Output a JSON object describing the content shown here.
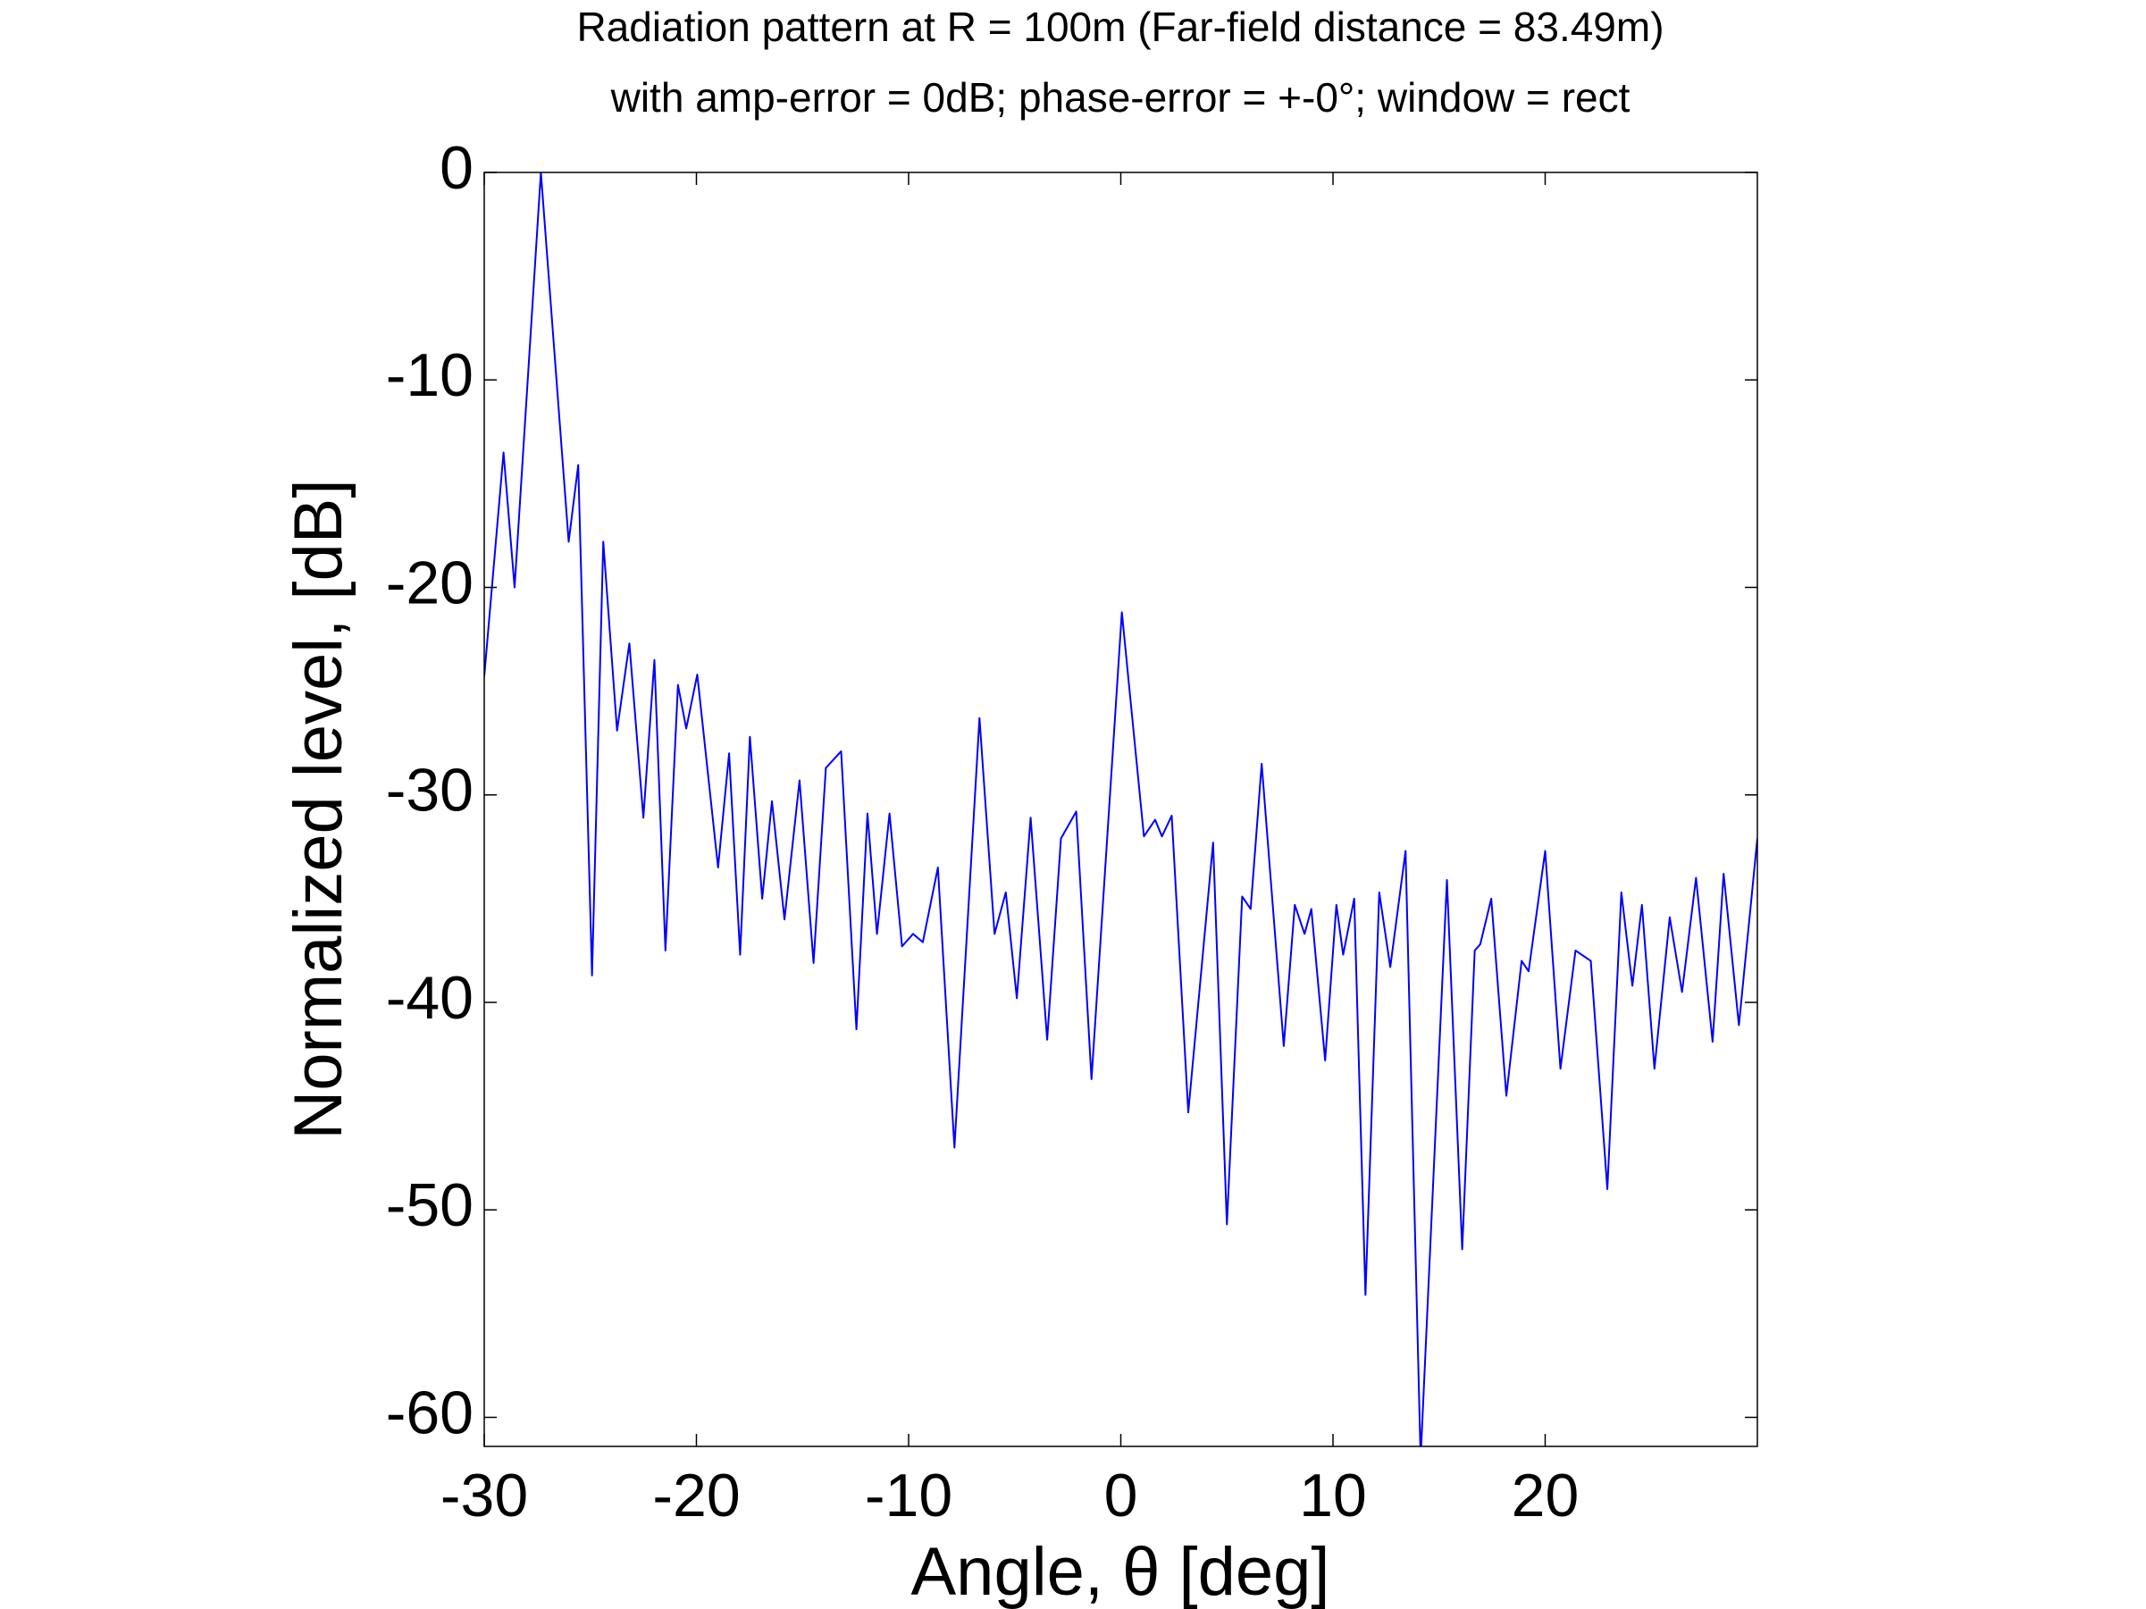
{
  "chart_data": {
    "type": "line",
    "title": "Radiation pattern at R = 100m (Far-field distance = 83.49m)",
    "subtitle": "with amp-error = 0dB; phase-error = +-0°; window = rect",
    "x_label": "Angle, θ [deg]",
    "y_label": "Normalized level, [dB]",
    "xlim": [
      -30,
      30
    ],
    "xticks": [
      -30,
      -20,
      -10,
      0,
      10,
      20
    ],
    "ylim": [
      -61.4,
      0
    ],
    "yticks": [
      0,
      -10,
      -20,
      -30,
      -40,
      -50,
      -60
    ],
    "grid": false,
    "series": [
      {
        "name": "pattern",
        "color": "#0000ff",
        "x": [
          -30,
          -29.09,
          -28.57,
          -27.33,
          -26.02,
          -25.57,
          -24.92,
          -24.39,
          -23.74,
          -23.16,
          -22.5,
          -21.98,
          -21.46,
          -20.87,
          -20.48,
          -19.96,
          -18.98,
          -18.46,
          -17.94,
          -17.48,
          -16.9,
          -16.44,
          -15.85,
          -15.14,
          -14.48,
          -13.9,
          -13.18,
          -12.46,
          -11.94,
          -11.49,
          -10.9,
          -10.31,
          -9.79,
          -9.33,
          -8.62,
          -7.84,
          -6.66,
          -5.95,
          -5.42,
          -4.9,
          -4.25,
          -3.47,
          -2.82,
          -2.1,
          -1.38,
          0.05,
          1.09,
          1.62,
          1.94,
          2.4,
          3.18,
          4.35,
          5.0,
          5.72,
          6.12,
          6.64,
          7.68,
          8.2,
          8.66,
          8.98,
          9.63,
          10.16,
          10.48,
          11.0,
          11.53,
          12.18,
          12.7,
          13.42,
          14.13,
          15.37,
          16.09,
          16.68,
          16.94,
          17.46,
          18.17,
          18.89,
          19.22,
          20,
          20.72,
          21.43,
          22.15,
          22.93,
          23.59,
          24.11,
          24.56,
          25.15,
          25.87,
          26.45,
          27.11,
          27.89,
          28.41,
          29.13,
          30
        ],
        "values": [
          -24.3,
          -13.5,
          -20,
          0,
          -17.8,
          -14.1,
          -38.7,
          -17.8,
          -26.9,
          -22.7,
          -31.1,
          -23.5,
          -37.5,
          -24.7,
          -26.8,
          -24.2,
          -33.5,
          -28,
          -37.7,
          -27.2,
          -35,
          -30.3,
          -36,
          -29.3,
          -38.1,
          -28.7,
          -27.9,
          -41.3,
          -30.9,
          -36.7,
          -30.9,
          -37.3,
          -36.7,
          -37.1,
          -33.5,
          -47,
          -26.3,
          -36.7,
          -34.7,
          -39.8,
          -31.1,
          -41.8,
          -32.1,
          -30.8,
          -43.7,
          -21.2,
          -32,
          -31.2,
          -32,
          -31,
          -45.3,
          -32.3,
          -50.7,
          -34.9,
          -35.5,
          -28.5,
          -42.1,
          -35.3,
          -36.7,
          -35.5,
          -42.8,
          -35.3,
          -37.7,
          -35,
          -54.1,
          -34.7,
          -38.3,
          -32.7,
          -62,
          -34.1,
          -51.9,
          -37.5,
          -37.2,
          -35,
          -44.5,
          -38,
          -38.5,
          -32.7,
          -43.2,
          -37.5,
          -38,
          -49,
          -34.7,
          -39.2,
          -35.3,
          -43.2,
          -35.9,
          -39.5,
          -34,
          -41.9,
          -33.8,
          -41.1,
          -32.1
        ]
      }
    ]
  }
}
